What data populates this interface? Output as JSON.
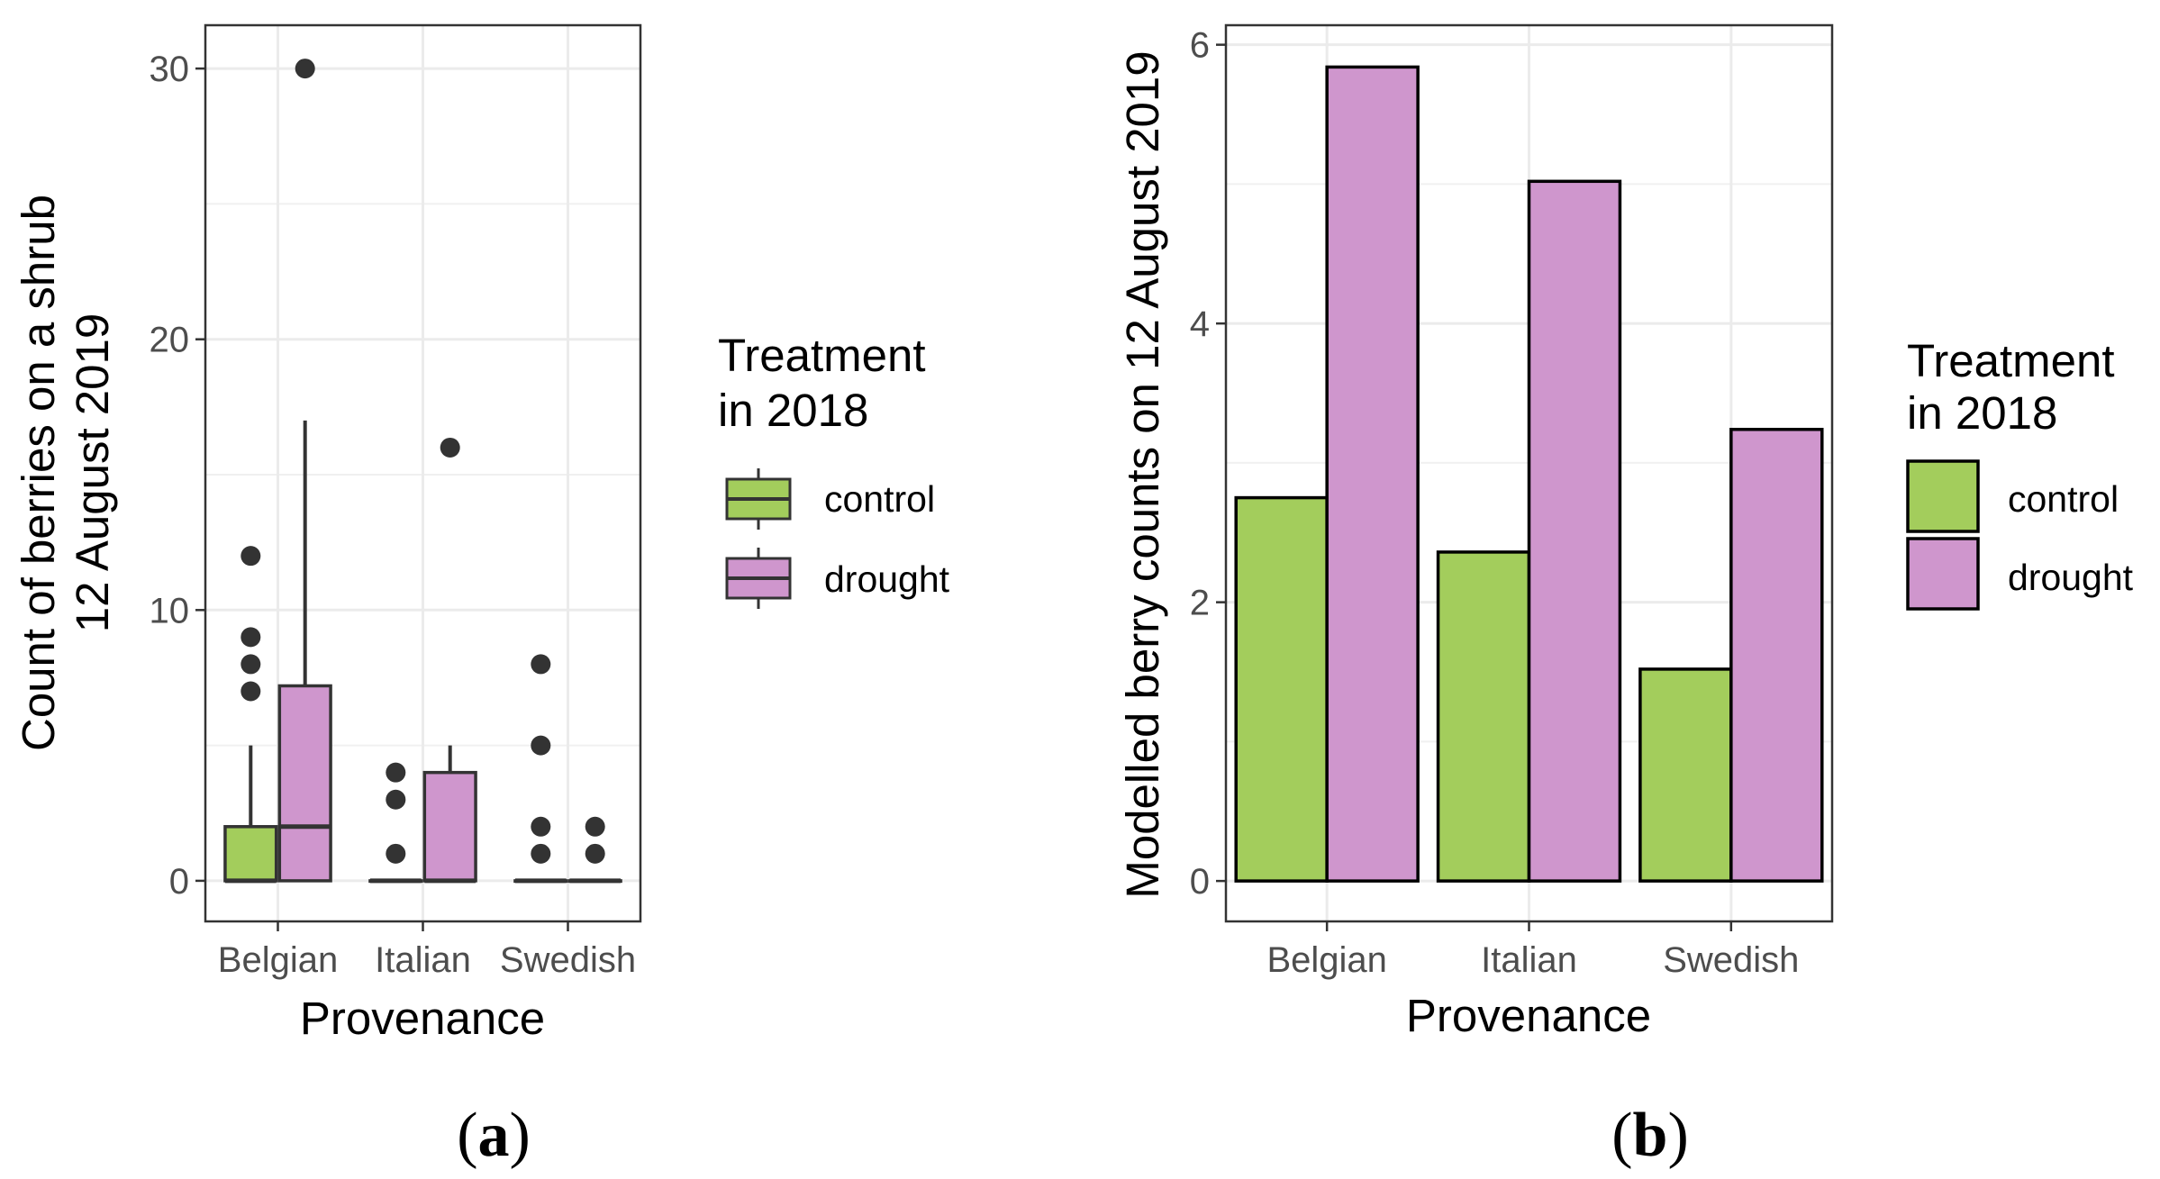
{
  "chart_data": [
    {
      "type": "box",
      "panel_label": {
        "open": "(",
        "letter": "a",
        "close": ")"
      },
      "categories": [
        "Belgian",
        "Italian",
        "Swedish"
      ],
      "xlabel": "Provenance",
      "ylabel_lines": [
        "Count of berries on a shrub",
        "12 August 2019"
      ],
      "ylim": [
        -1.5,
        31.6
      ],
      "yticks": [
        0,
        10,
        20,
        30
      ],
      "grid": true,
      "legend": {
        "title_lines": [
          "Treatment",
          "in 2018"
        ],
        "position": "right",
        "entries": [
          {
            "label": "control",
            "color": "#a3cd5c"
          },
          {
            "label": "drought",
            "color": "#cf96cd"
          }
        ]
      },
      "series": [
        {
          "name": "control",
          "color": "#a3cd5c",
          "boxes": [
            {
              "category": "Belgian",
              "q1": 0,
              "median": 0,
              "q3": 2,
              "whisker_low": 0,
              "whisker_high": 5,
              "outliers": [
                7,
                8,
                9,
                12
              ]
            },
            {
              "category": "Italian",
              "q1": 0,
              "median": 0,
              "q3": 0,
              "whisker_low": 0,
              "whisker_high": 0,
              "outliers": [
                1,
                3,
                4
              ]
            },
            {
              "category": "Swedish",
              "q1": 0,
              "median": 0,
              "q3": 0,
              "whisker_low": 0,
              "whisker_high": 0,
              "outliers": [
                1,
                2,
                5,
                8
              ]
            }
          ]
        },
        {
          "name": "drought",
          "color": "#cf96cd",
          "boxes": [
            {
              "category": "Belgian",
              "q1": 0,
              "median": 2,
              "q3": 7.2,
              "whisker_low": 0,
              "whisker_high": 17,
              "outliers": [
                30
              ]
            },
            {
              "category": "Italian",
              "q1": 0,
              "median": 0,
              "q3": 4,
              "whisker_low": 0,
              "whisker_high": 5,
              "outliers": [
                16
              ]
            },
            {
              "category": "Swedish",
              "q1": 0,
              "median": 0,
              "q3": 0,
              "whisker_low": 0,
              "whisker_high": 0,
              "outliers": [
                1,
                2
              ]
            }
          ]
        }
      ]
    },
    {
      "type": "bar",
      "panel_label": {
        "open": "(",
        "letter": "b",
        "close": ")"
      },
      "categories": [
        "Belgian",
        "Italian",
        "Swedish"
      ],
      "xlabel": "Provenance",
      "ylabel": "Modelled berry counts on 12 August 2019",
      "ylim": [
        -0.29,
        6.14
      ],
      "yticks": [
        0,
        2,
        4,
        6
      ],
      "grid": true,
      "legend": {
        "title_lines": [
          "Treatment",
          "in 2018"
        ],
        "position": "right",
        "entries": [
          {
            "label": "control",
            "color": "#a3cd5c"
          },
          {
            "label": "drought",
            "color": "#cf96cd"
          }
        ]
      },
      "series": [
        {
          "name": "control",
          "color": "#a3cd5c",
          "values": [
            2.75,
            2.36,
            1.52
          ]
        },
        {
          "name": "drought",
          "color": "#cf96cd",
          "values": [
            5.84,
            5.02,
            3.24
          ]
        }
      ]
    }
  ]
}
